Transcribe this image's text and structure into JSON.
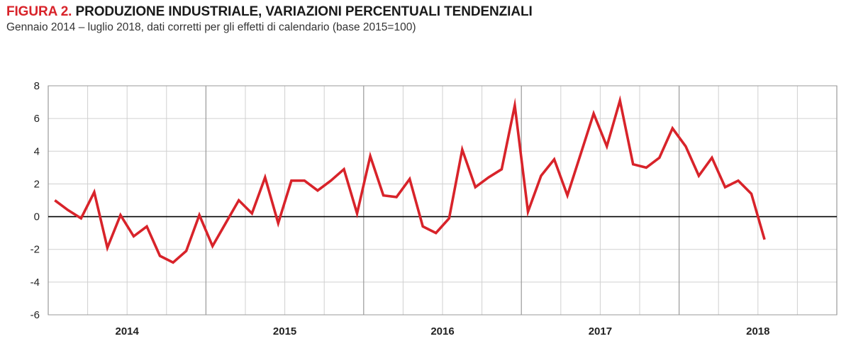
{
  "header": {
    "figure_label": "FIGURA 2.",
    "title": "PRODUZIONE INDUSTRIALE, VARIAZIONI PERCENTUALI TENDENZIALI",
    "subtitle": "Gennaio 2014 – luglio 2018, dati corretti per gli effetti di calendario (base 2015=100)"
  },
  "chart_data": {
    "type": "line",
    "title": "PRODUZIONE INDUSTRIALE, VARIAZIONI PERCENTUALI TENDENZIALI",
    "subtitle": "Gennaio 2014 – luglio 2018, dati corretti per gli effetti di calendario (base 2015=100)",
    "xlabel": "",
    "ylabel": "",
    "ylim": [
      -6,
      8
    ],
    "yticks": [
      -6,
      -4,
      -2,
      0,
      2,
      4,
      6,
      8
    ],
    "ytick_labels": [
      "-6",
      "-4",
      "-2",
      "0",
      "2",
      "4",
      "6",
      "8"
    ],
    "year_labels": [
      "2014",
      "2015",
      "2016",
      "2017",
      "2018"
    ],
    "grid": true,
    "zero_line": true,
    "line_color": "#d8232a",
    "series": [
      {
        "values": [
          1.0,
          0.4,
          -0.1,
          1.5,
          -1.9,
          0.1,
          -1.2,
          -0.6,
          -2.4,
          -2.8,
          -2.1,
          0.1,
          -1.8,
          -0.4,
          1.0,
          0.2,
          2.4,
          -0.4,
          2.2,
          2.2,
          1.6,
          2.2,
          2.9,
          0.2,
          3.7,
          1.3,
          1.2,
          2.3,
          -0.6,
          -1.0,
          -0.1,
          4.1,
          1.8,
          2.4,
          2.9,
          6.8,
          0.3,
          2.5,
          3.5,
          1.3,
          3.8,
          6.3,
          4.3,
          7.1,
          3.2,
          3.0,
          3.6,
          5.4,
          4.3,
          2.5,
          3.6,
          1.8,
          2.2,
          1.4,
          -1.4
        ]
      }
    ]
  }
}
